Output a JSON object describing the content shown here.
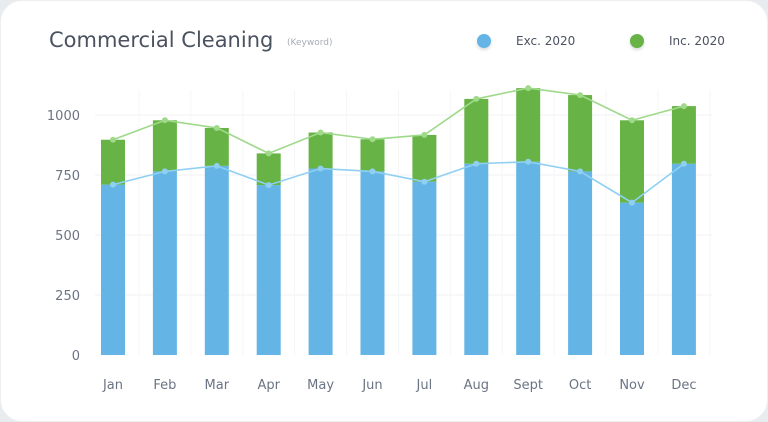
{
  "header": {
    "title": "Commercial Cleaning",
    "subtitle": "(Keyword)"
  },
  "chart_data": {
    "type": "bar",
    "stacked": true,
    "title": "Commercial Cleaning",
    "subtitle": "(Keyword)",
    "categories": [
      "Jan",
      "Feb",
      "Mar",
      "Apr",
      "May",
      "Jun",
      "Jul",
      "Aug",
      "Sept",
      "Oct",
      "Nov",
      "Dec"
    ],
    "series": [
      {
        "name": "Exc. 2020",
        "color": "#64b5e6",
        "values": [
          710,
          765,
          788,
          708,
          777,
          765,
          722,
          797,
          805,
          765,
          635,
          797
        ]
      },
      {
        "name": "Inc. 2020",
        "color": "#67b346",
        "totals": [
          897,
          978,
          946,
          840,
          927,
          899,
          917,
          1067,
          1112,
          1083,
          978,
          1037
        ]
      }
    ],
    "overlay_lines": true,
    "yticks": [
      0,
      250,
      500,
      750,
      1000
    ],
    "ylim": [
      0,
      1150
    ],
    "grid": true,
    "legend": "top-right"
  }
}
